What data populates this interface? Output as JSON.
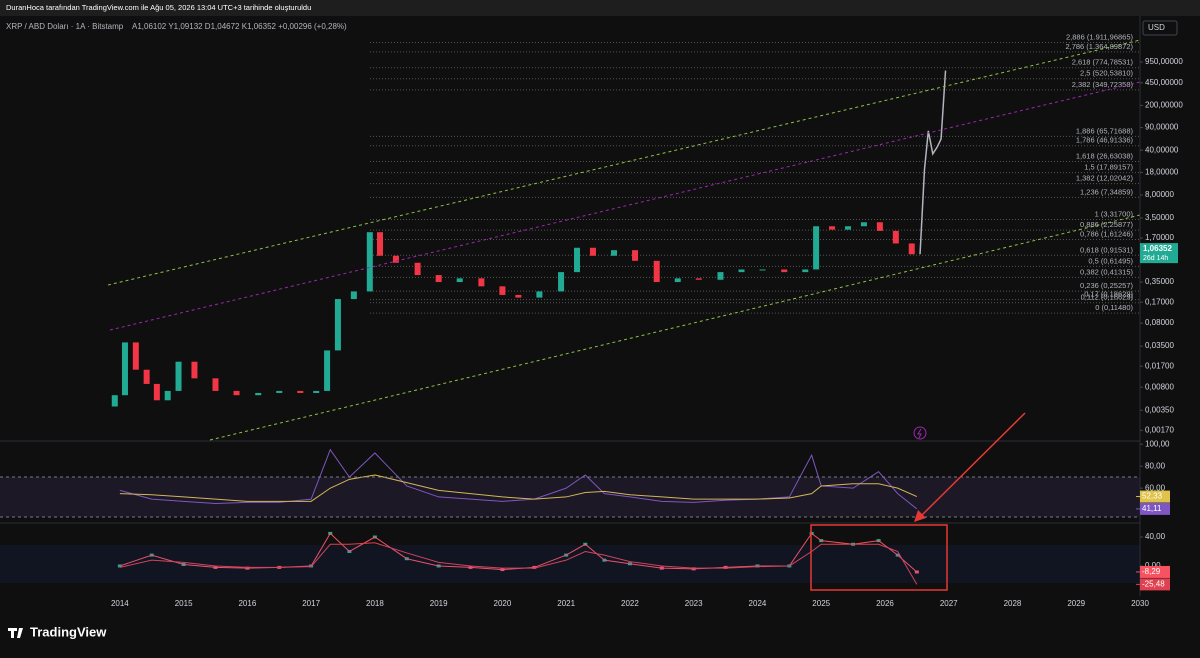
{
  "header": {
    "attribution": "DuranHoca tarafından TradingView.com ile Ağu 05, 2026 13:04 UTC+3 tarihinde oluşturuldu",
    "symbol": "XRP / ABD Doları · 1A · Bitstamp",
    "ohlc": "A1,06102 Y1,09132 D1,04672 K1,06352 +0,00296 (+0,28%)",
    "currency": "USD"
  },
  "footer": {
    "brand": "TradingView"
  },
  "chart_data": [
    {
      "type": "candlestick",
      "log_scale": true,
      "grid": false,
      "up_color": "#22ab94",
      "down_color": "#f23645",
      "xlim": [
        2012.12,
        2030.0
      ],
      "ylim": [
        0.0012,
        4300
      ],
      "xticks": [
        2014,
        2015,
        2016,
        2017,
        2018,
        2019,
        2020,
        2021,
        2022,
        2023,
        2024,
        2025,
        2026,
        2027,
        2028,
        2029,
        2030
      ],
      "yticks": [
        {
          "value": 950,
          "label": "950,00000"
        },
        {
          "value": 450,
          "label": "450,00000"
        },
        {
          "value": 200,
          "label": "200,00000"
        },
        {
          "value": 90,
          "label": "90,00000"
        },
        {
          "value": 40,
          "label": "40,00000"
        },
        {
          "value": 18,
          "label": "18,00000"
        },
        {
          "value": 8,
          "label": "8,00000"
        },
        {
          "value": 3.5,
          "label": "3,50000"
        },
        {
          "value": 1.7,
          "label": "1,70000"
        },
        {
          "value": 0.35,
          "label": "0,35000"
        },
        {
          "value": 0.17,
          "label": "0,17000"
        },
        {
          "value": 0.08,
          "label": "0,08000"
        },
        {
          "value": 0.035,
          "label": "0,03500"
        },
        {
          "value": 0.017,
          "label": "0,01700"
        },
        {
          "value": 0.008,
          "label": "0,00800"
        },
        {
          "value": 0.0035,
          "label": "0,00350"
        },
        {
          "value": 0.0017,
          "label": "0,00170"
        }
      ],
      "x": [
        2013.92,
        2014.08,
        2014.25,
        2014.42,
        2014.58,
        2014.75,
        2014.92,
        2015.17,
        2015.5,
        2015.83,
        2016.17,
        2016.5,
        2016.83,
        2017.08,
        2017.25,
        2017.42,
        2017.67,
        2017.92,
        2018.08,
        2018.33,
        2018.67,
        2019.0,
        2019.33,
        2019.67,
        2020.0,
        2020.25,
        2020.58,
        2020.92,
        2021.17,
        2021.42,
        2021.75,
        2022.08,
        2022.42,
        2022.75,
        2023.08,
        2023.42,
        2023.75,
        2024.08,
        2024.42,
        2024.75,
        2024.92,
        2025.17,
        2025.42,
        2025.67,
        2025.92,
        2026.17,
        2026.42
      ],
      "open": [
        0.004,
        0.006,
        0.04,
        0.015,
        0.009,
        0.005,
        0.007,
        0.02,
        0.011,
        0.007,
        0.006,
        0.0065,
        0.007,
        0.0065,
        0.007,
        0.03,
        0.19,
        0.25,
        2.1,
        0.9,
        0.7,
        0.45,
        0.35,
        0.4,
        0.3,
        0.22,
        0.2,
        0.25,
        0.5,
        1.2,
        0.9,
        1.1,
        0.75,
        0.35,
        0.4,
        0.38,
        0.5,
        0.55,
        0.55,
        0.5,
        0.55,
        2.6,
        2.3,
        2.6,
        3.0,
        2.2,
        1.4
      ],
      "close": [
        0.006,
        0.04,
        0.015,
        0.009,
        0.005,
        0.007,
        0.02,
        0.011,
        0.007,
        0.006,
        0.0065,
        0.007,
        0.0065,
        0.007,
        0.03,
        0.19,
        0.25,
        2.1,
        0.9,
        0.7,
        0.45,
        0.35,
        0.4,
        0.3,
        0.22,
        0.2,
        0.25,
        0.5,
        1.2,
        0.9,
        1.1,
        0.75,
        0.35,
        0.4,
        0.38,
        0.5,
        0.55,
        0.55,
        0.5,
        0.55,
        2.6,
        2.3,
        2.6,
        3.0,
        2.2,
        1.4,
        0.95
      ],
      "projection": {
        "color": "#b2b5be",
        "x": [
          2026.55,
          2026.62,
          2026.68,
          2026.75,
          2026.82,
          2026.88,
          2026.95
        ],
        "values": [
          0.95,
          20,
          80,
          35,
          45,
          60,
          700
        ]
      },
      "fib_levels": [
        {
          "value": 1911.96865,
          "label": "2,886 (1.911,96865)"
        },
        {
          "value": 1364.89872,
          "label": "2,786 (1.364,89872)"
        },
        {
          "value": 774.78531,
          "label": "2,618 (774,78531)"
        },
        {
          "value": 520.5381,
          "label": "2,5 (520,53810)"
        },
        {
          "value": 349.72358,
          "label": "2,382 (349,72358)"
        },
        {
          "value": 65.71688,
          "label": "1,886 (65,71688)"
        },
        {
          "value": 46.91336,
          "label": "1,786 (46,91336)"
        },
        {
          "value": 26.63038,
          "label": "1,618 (26,63038)"
        },
        {
          "value": 17.89157,
          "label": "1,5 (17,89157)"
        },
        {
          "value": 12.02042,
          "label": "1,382 (12,02042)"
        },
        {
          "value": 7.34859,
          "label": "1,236 (7,34859)"
        },
        {
          "value": 3.317,
          "label": "1 (3,31700)"
        },
        {
          "value": 2.25877,
          "label": "0,886 (2,25877)"
        },
        {
          "value": 1.61246,
          "label": "0,786 (1,61246)"
        },
        {
          "value": 0.91531,
          "label": "0,618 (0,91531)"
        },
        {
          "value": 0.61495,
          "label": "0,5 (0,61495)"
        },
        {
          "value": 0.41315,
          "label": "0,382 (0,41315)"
        },
        {
          "value": 0.25257,
          "label": "0,236 (0,25257)"
        },
        {
          "value": 0.18629,
          "label": "0,17 (0,18629)"
        },
        {
          "value": 0.16629,
          "label": "0,112 (0,16629)"
        },
        {
          "value": 0.1148,
          "label": "0 (0,11480)"
        }
      ],
      "last_price": {
        "value": 1.06352,
        "label": "1,06352",
        "countdown": "26d 14h",
        "color": "#22ab94"
      }
    },
    {
      "type": "line",
      "grid": false,
      "xlim": [
        2012.12,
        2030.0
      ],
      "ylim": [
        31,
        102
      ],
      "yticks": [
        {
          "value": 100,
          "label": "100,00"
        },
        {
          "value": 80,
          "label": "80,00"
        },
        {
          "value": 60,
          "label": "60,00"
        }
      ],
      "x": [
        2014.0,
        2014.5,
        2015.0,
        2015.5,
        2016.0,
        2016.5,
        2017.0,
        2017.3,
        2017.6,
        2018.0,
        2018.5,
        2019.0,
        2019.5,
        2020.0,
        2020.5,
        2021.0,
        2021.3,
        2021.6,
        2022.0,
        2022.5,
        2023.0,
        2023.5,
        2024.0,
        2024.5,
        2024.85,
        2025.0,
        2025.5,
        2025.9,
        2026.2,
        2026.5
      ],
      "series": [
        {
          "color": "#7e57c2",
          "values": [
            58,
            50,
            48,
            46,
            47,
            47,
            50,
            95,
            70,
            92,
            62,
            52,
            50,
            48,
            50,
            60,
            72,
            55,
            52,
            48,
            47,
            49,
            50,
            52,
            90,
            62,
            60,
            75,
            55,
            41.11
          ],
          "last_label": {
            "value": 41.11,
            "label": "41,11"
          }
        },
        {
          "color": "#e0c34b",
          "values": [
            55,
            54,
            52,
            50,
            48,
            48,
            48,
            60,
            68,
            72,
            65,
            58,
            55,
            52,
            50,
            52,
            56,
            57,
            54,
            52,
            50,
            50,
            50,
            51,
            55,
            62,
            64,
            64,
            60,
            52.33
          ],
          "last_label": {
            "value": 52.33,
            "label": "52,33"
          }
        }
      ]
    },
    {
      "type": "line",
      "grid": false,
      "xlim": [
        2012.12,
        2030.0
      ],
      "ylim": [
        -36,
        58
      ],
      "yticks": [
        {
          "value": 40,
          "label": "40,00"
        },
        {
          "value": 0,
          "label": "0,00"
        }
      ],
      "x": [
        2014.0,
        2014.5,
        2015.0,
        2015.5,
        2016.0,
        2016.5,
        2017.0,
        2017.3,
        2017.6,
        2018.0,
        2018.5,
        2019.0,
        2019.5,
        2020.0,
        2020.5,
        2021.0,
        2021.3,
        2021.6,
        2022.0,
        2022.5,
        2023.0,
        2023.5,
        2024.0,
        2024.5,
        2024.85,
        2025.0,
        2025.5,
        2025.9,
        2026.2,
        2026.5
      ],
      "series": [
        {
          "color": "#f7525f",
          "markers": true,
          "values": [
            0,
            15,
            2,
            -2,
            -3,
            -2,
            0,
            45,
            20,
            40,
            10,
            0,
            -2,
            -5,
            -2,
            15,
            30,
            8,
            3,
            -3,
            -4,
            -2,
            0,
            0,
            45,
            35,
            30,
            35,
            15,
            -8.29
          ],
          "last_label": {
            "value": -8.29,
            "label": "-8,29"
          }
        },
        {
          "color": "#e0404f",
          "values": [
            -2,
            8,
            5,
            0,
            -2,
            -2,
            -1,
            30,
            30,
            32,
            18,
            5,
            0,
            -3,
            -3,
            8,
            20,
            15,
            6,
            0,
            -3,
            -3,
            -1,
            0,
            20,
            30,
            30,
            30,
            20,
            -25.48
          ],
          "last_label": {
            "value": -25.48,
            "label": "-25,48"
          }
        }
      ]
    }
  ]
}
